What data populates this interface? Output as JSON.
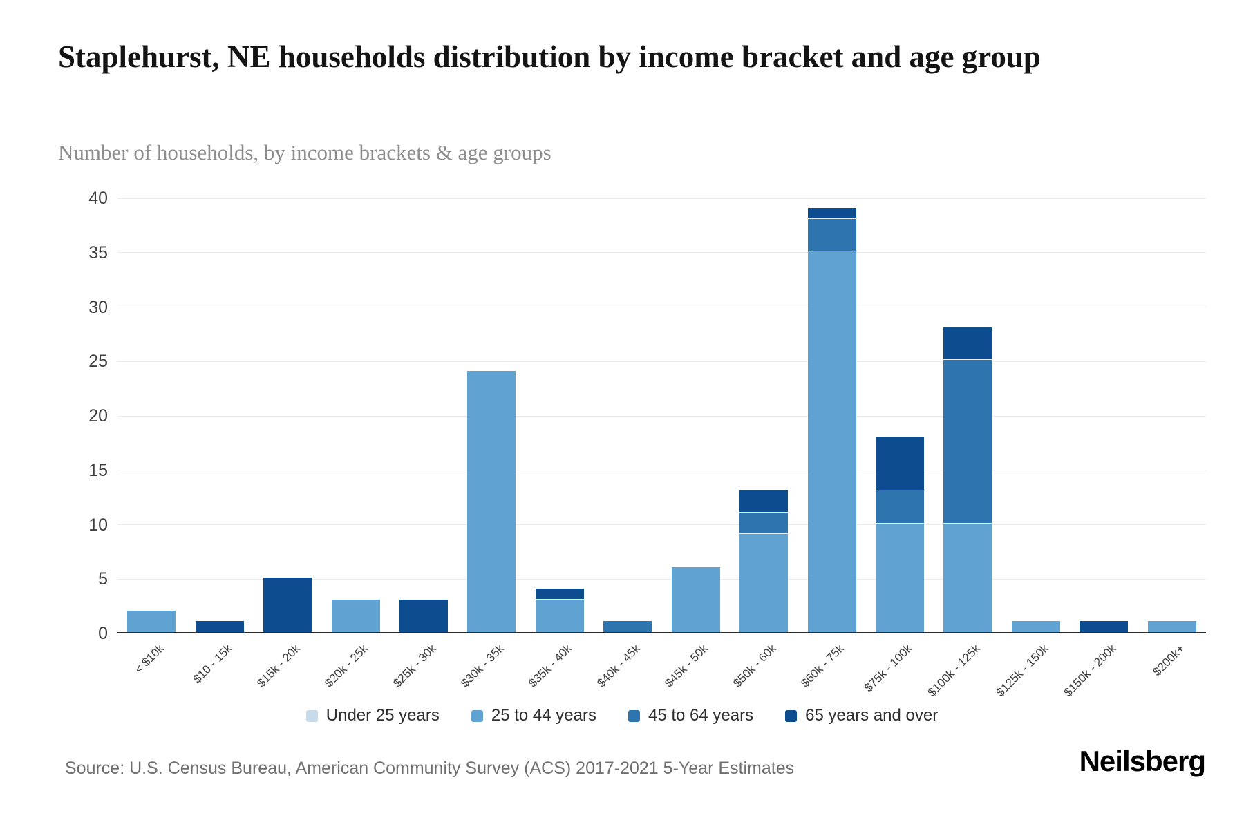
{
  "header": {
    "title": "Staplehurst, NE households distribution by income bracket and age group",
    "subtitle": "Number of households, by income brackets & age groups"
  },
  "footer": {
    "source": "Source: U.S. Census Bureau, American Community Survey (ACS) 2017-2021 5-Year Estimates",
    "brand": "Neilsberg"
  },
  "chart_data": {
    "type": "bar",
    "stacked": true,
    "title": "Staplehurst, NE households distribution by income bracket and age group",
    "subtitle": "Number of households, by income brackets & age groups",
    "xlabel": "",
    "ylabel": "Number of households",
    "categories": [
      "< $10k",
      "$10 - 15k",
      "$15k - 20k",
      "$20k - 25k",
      "$25k - 30k",
      "$30k - 35k",
      "$35k - 40k",
      "$40k - 45k",
      "$45k - 50k",
      "$50k - 60k",
      "$60k - 75k",
      "$75k - 100k",
      "$100k - 125k",
      "$125k - 150k",
      "$150k - 200k",
      "$200k+"
    ],
    "series": [
      {
        "name": "Under 25 years",
        "color": "#c7dbeb",
        "values": [
          0,
          0,
          0,
          0,
          0,
          0,
          0,
          0,
          0,
          0,
          0,
          0,
          0,
          0,
          0,
          0
        ]
      },
      {
        "name": "25 to 44 years",
        "color": "#60a3d2",
        "values": [
          2,
          0,
          0,
          3,
          0,
          24,
          3,
          0,
          6,
          9,
          35,
          10,
          10,
          1,
          0,
          1
        ]
      },
      {
        "name": "45 to 64 years",
        "color": "#2e75b0",
        "values": [
          0,
          0,
          0,
          0,
          0,
          0,
          0,
          1,
          0,
          2,
          3,
          3,
          15,
          0,
          0,
          0
        ]
      },
      {
        "name": "65 years and over",
        "color": "#0d4d8f",
        "values": [
          0,
          1,
          5,
          0,
          3,
          0,
          1,
          0,
          0,
          2,
          1,
          5,
          3,
          0,
          1,
          0
        ]
      }
    ],
    "totals": [
      2,
      1,
      5,
      3,
      3,
      24,
      4,
      1,
      6,
      13,
      39,
      18,
      28,
      1,
      1,
      1
    ],
    "ylim": [
      0,
      40
    ],
    "yticks": [
      0,
      5,
      10,
      15,
      20,
      25,
      30,
      35,
      40
    ],
    "grid": true,
    "legend_position": "bottom"
  }
}
